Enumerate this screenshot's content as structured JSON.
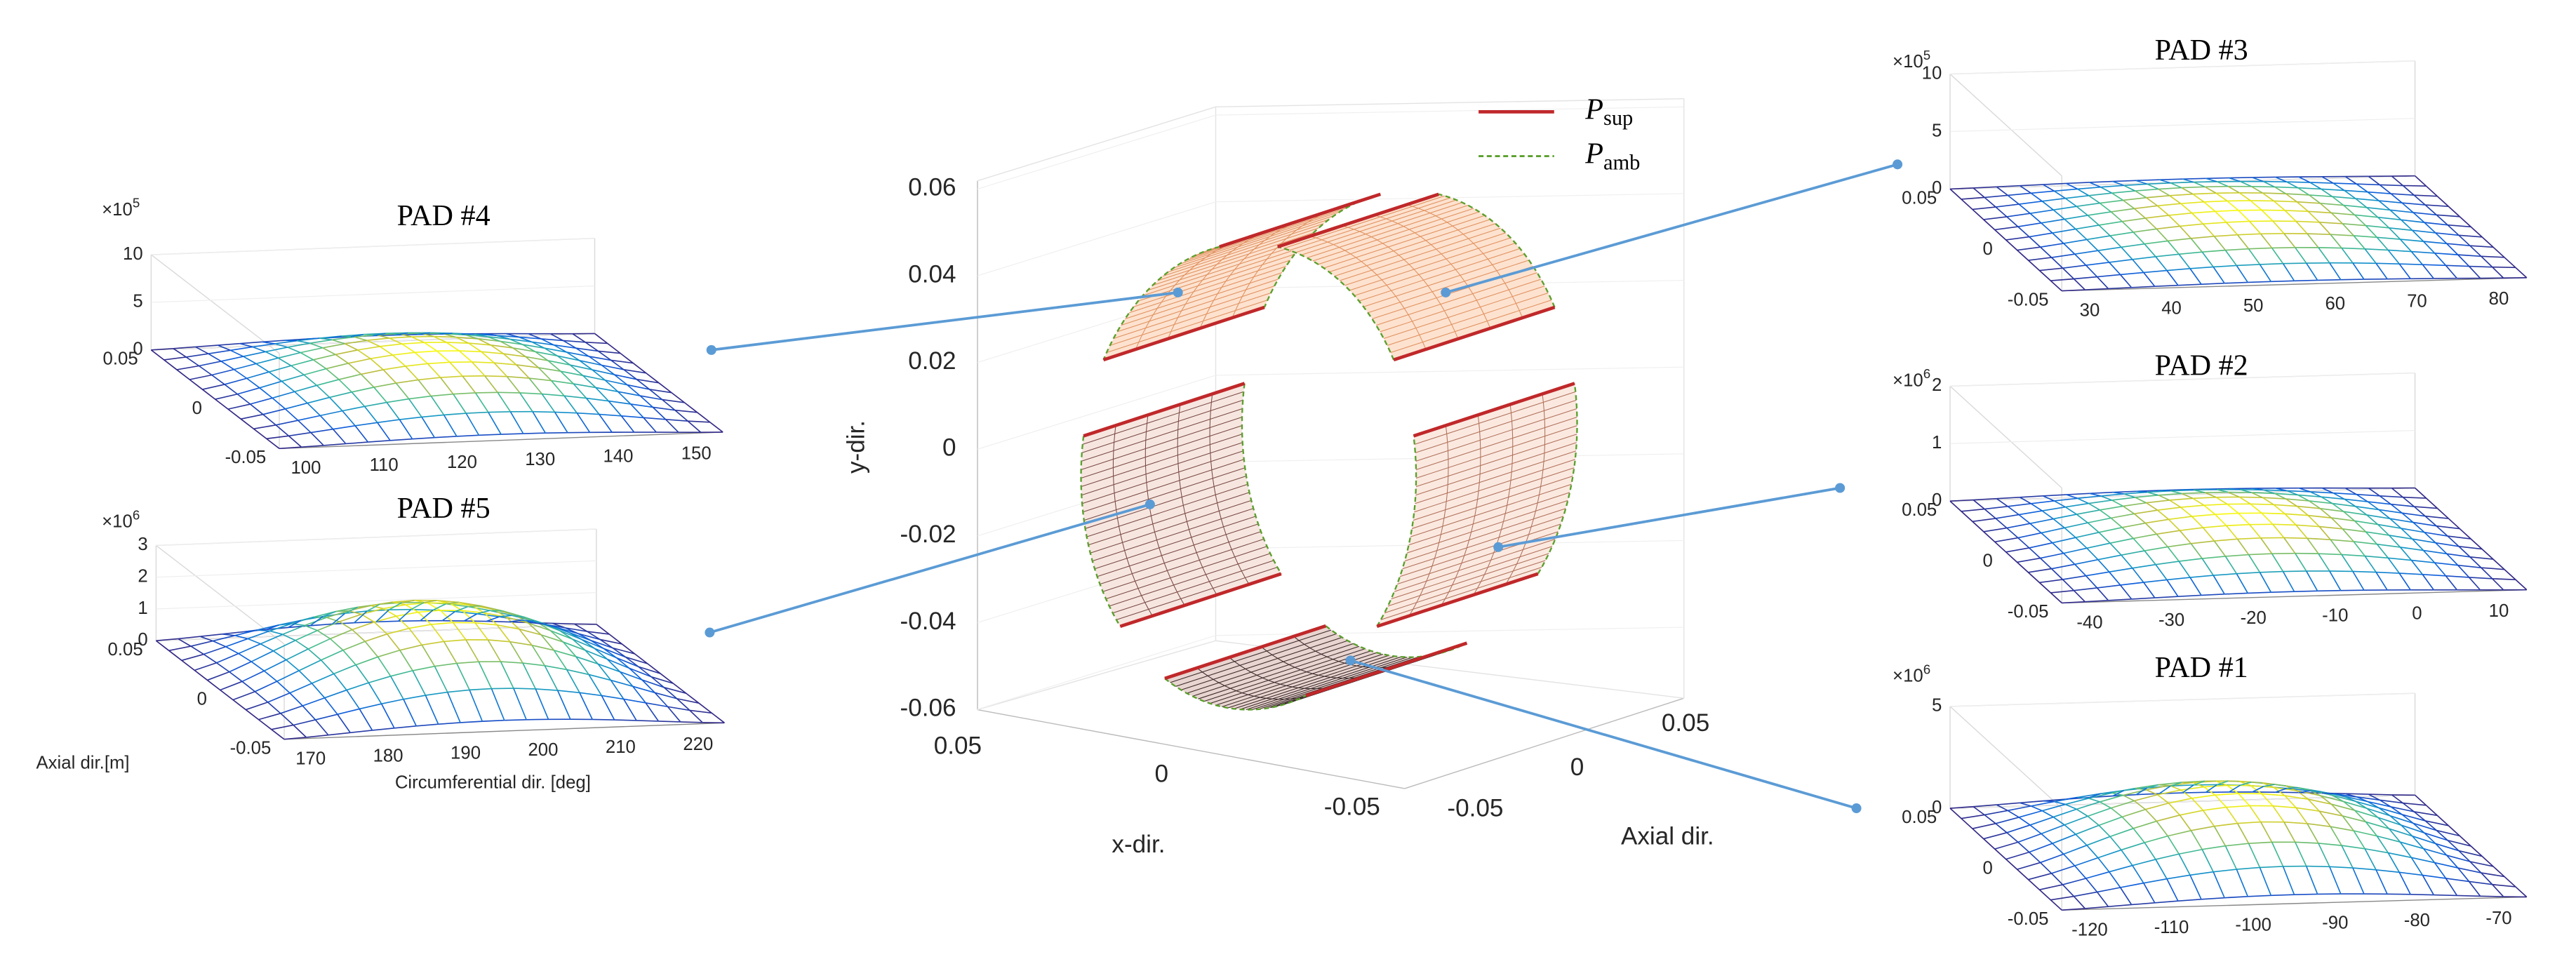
{
  "center": {
    "y_axis_label": "y-dir.",
    "x_axis_label": "x-dir.",
    "axial_axis_label": "Axial dir.",
    "y_ticks": [
      "0.06",
      "0.04",
      "0.02",
      "0",
      "-0.02",
      "-0.04",
      "-0.06"
    ],
    "x_ticks": [
      "0.05",
      "0",
      "-0.05"
    ],
    "axial_ticks": [
      "-0.05",
      "0",
      "0.05"
    ],
    "legend": [
      {
        "symbol": "P",
        "subscript": "sup"
      },
      {
        "symbol": "P",
        "subscript": "amb"
      }
    ]
  },
  "pads": [
    {
      "title": "PAD #4",
      "exp_base": "×10",
      "exp_power": "5",
      "z_ticks": [
        "0",
        "5",
        "10"
      ],
      "axial_ticks": [
        "0.05",
        "0",
        "-0.05"
      ],
      "circ_ticks": [
        "100",
        "110",
        "120",
        "130",
        "140",
        "150"
      ]
    },
    {
      "title": "PAD #5",
      "exp_base": "×10",
      "exp_power": "6",
      "z_ticks": [
        "0",
        "1",
        "2",
        "3"
      ],
      "axial_ticks": [
        "0.05",
        "0",
        "-0.05"
      ],
      "circ_ticks": [
        "170",
        "180",
        "190",
        "200",
        "210",
        "220"
      ]
    },
    {
      "title": "PAD #3",
      "exp_base": "×10",
      "exp_power": "5",
      "z_ticks": [
        "0",
        "5",
        "10"
      ],
      "axial_ticks": [
        "0.05",
        "0",
        "-0.05"
      ],
      "circ_ticks": [
        "30",
        "40",
        "50",
        "60",
        "70",
        "80"
      ]
    },
    {
      "title": "PAD #2",
      "exp_base": "×10",
      "exp_power": "6",
      "z_ticks": [
        "0",
        "1",
        "2"
      ],
      "axial_ticks": [
        "0.05",
        "0",
        "-0.05"
      ],
      "circ_ticks": [
        "-40",
        "-30",
        "-20",
        "-10",
        "0",
        "10"
      ]
    },
    {
      "title": "PAD #1",
      "exp_base": "×10",
      "exp_power": "6",
      "z_ticks": [
        "0",
        "5"
      ],
      "axial_ticks": [
        "0.05",
        "0",
        "-0.05"
      ],
      "circ_ticks": [
        "-120",
        "-110",
        "-100",
        "-90",
        "-80",
        "-70"
      ]
    }
  ],
  "axis_labels": {
    "axial": "Axial dir.[m]",
    "circumferential": "Circumferential dir. [deg]"
  }
}
